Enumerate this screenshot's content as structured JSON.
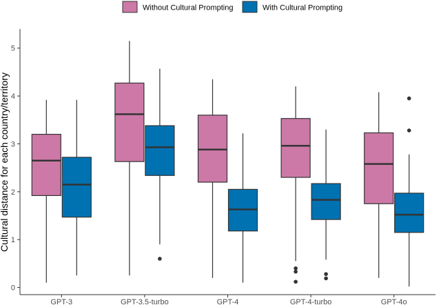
{
  "chart_data": {
    "type": "box",
    "title": "",
    "xlabel": "",
    "ylabel": "Cultural distance for each country/territory",
    "ylim": [
      -0.15,
      5.4
    ],
    "yticks": [
      0,
      1,
      2,
      3,
      4,
      5
    ],
    "categories": [
      "GPT-3",
      "GPT-3.5-turbo",
      "GPT-4",
      "GPT-4-turbo",
      "GPT-4o"
    ],
    "legend_position": "top",
    "grid": false,
    "series": [
      {
        "name": "Without Cultural Prompting",
        "color": "#cc79a7",
        "boxes": [
          {
            "min": 0.1,
            "q1": 1.92,
            "median": 2.65,
            "q3": 3.2,
            "max": 3.92,
            "outliers": []
          },
          {
            "min": 0.25,
            "q1": 2.63,
            "median": 3.62,
            "q3": 4.27,
            "max": 5.15,
            "outliers": []
          },
          {
            "min": 0.2,
            "q1": 2.2,
            "median": 2.88,
            "q3": 3.6,
            "max": 4.35,
            "outliers": []
          },
          {
            "min": 0.55,
            "q1": 2.3,
            "median": 2.96,
            "q3": 3.53,
            "max": 4.2,
            "outliers": [
              0.4,
              0.33,
              0.12
            ]
          },
          {
            "min": 0.2,
            "q1": 1.75,
            "median": 2.58,
            "q3": 3.23,
            "max": 4.08,
            "outliers": []
          }
        ]
      },
      {
        "name": "With Cultural Prompting",
        "color": "#0072b2",
        "boxes": [
          {
            "min": 0.25,
            "q1": 1.47,
            "median": 2.15,
            "q3": 2.72,
            "max": 3.92,
            "outliers": []
          },
          {
            "min": 0.9,
            "q1": 2.34,
            "median": 2.93,
            "q3": 3.38,
            "max": 4.57,
            "outliers": [
              0.6
            ]
          },
          {
            "min": 0.1,
            "q1": 1.18,
            "median": 1.63,
            "q3": 2.05,
            "max": 3.22,
            "outliers": []
          },
          {
            "min": 0.58,
            "q1": 1.42,
            "median": 1.83,
            "q3": 2.17,
            "max": 3.3,
            "outliers": [
              0.28,
              0.19
            ]
          },
          {
            "min": 0.02,
            "q1": 1.15,
            "median": 1.52,
            "q3": 1.97,
            "max": 2.78,
            "outliers": [
              3.95,
              3.28
            ]
          }
        ]
      }
    ]
  }
}
